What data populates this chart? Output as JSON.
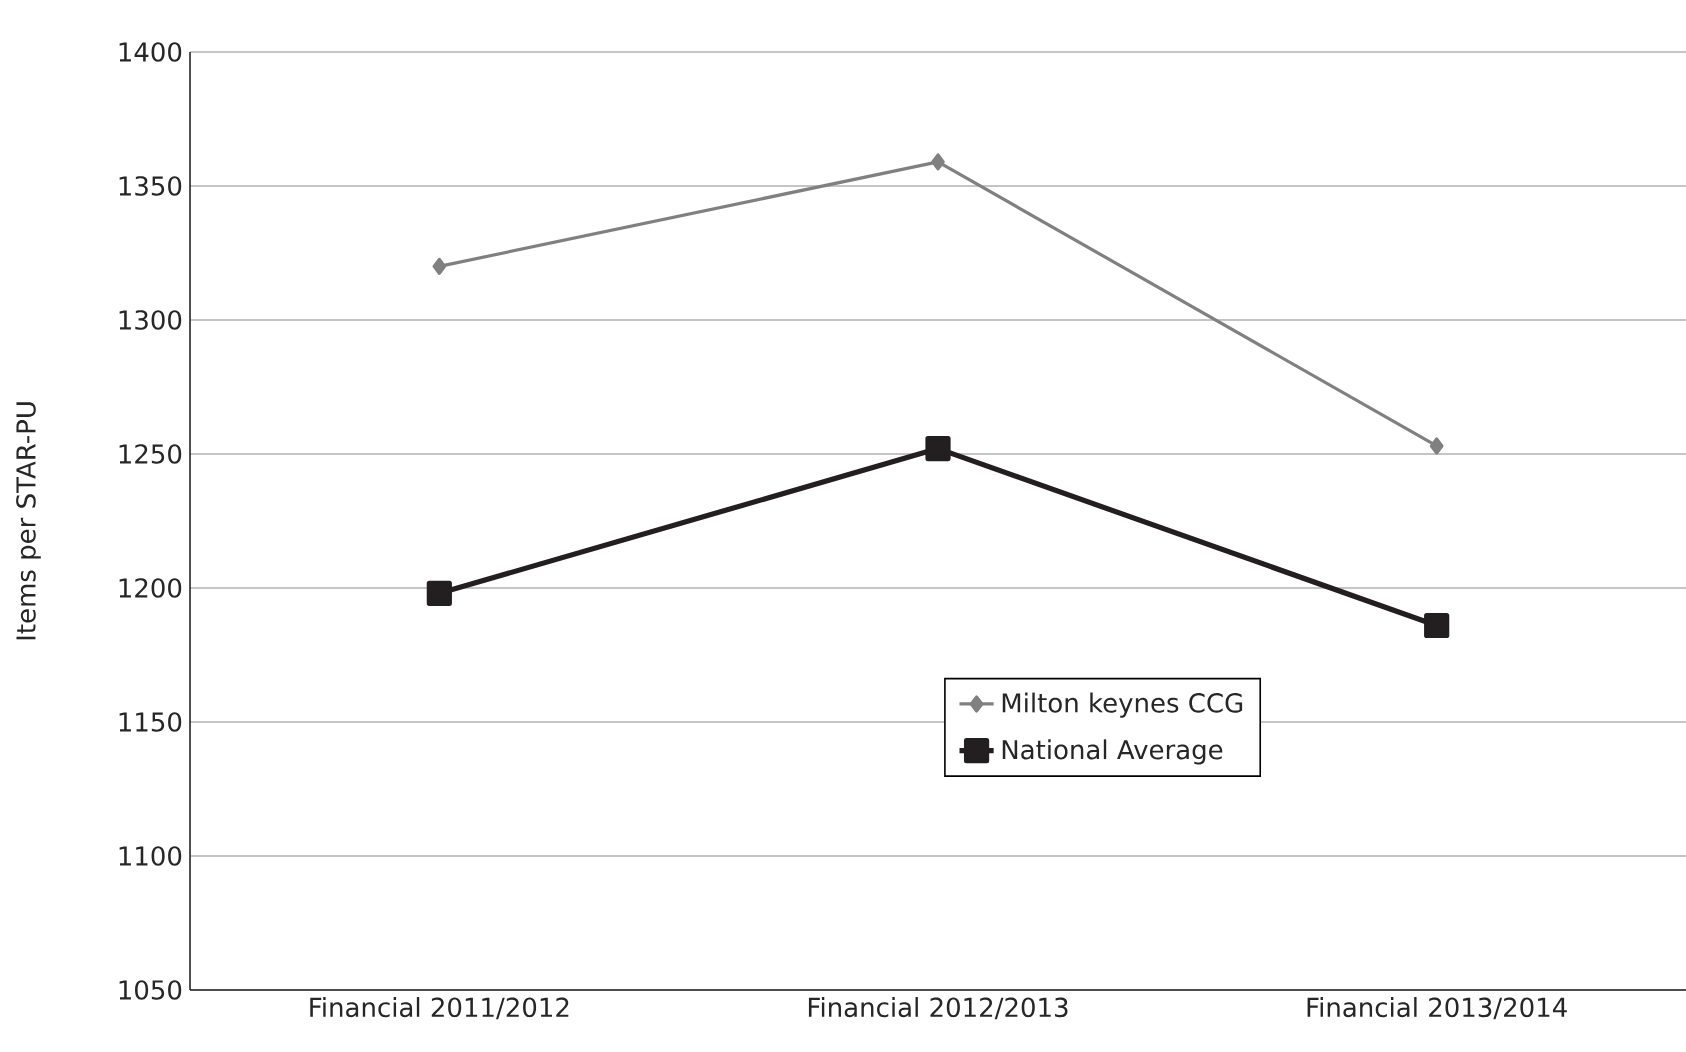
{
  "chart_data": {
    "type": "line",
    "ylabel": "Items per STAR-PU",
    "categories": [
      "Financial 2011/2012",
      "Financial 2012/2013",
      "Financial 2013/2014"
    ],
    "series": [
      {
        "name": "Milton keynes CCG",
        "color": "#808080",
        "values": [
          1320,
          1359,
          1253
        ],
        "marker": "diamond"
      },
      {
        "name": "National Average",
        "color": "#231f20",
        "values": [
          1198,
          1252,
          1186
        ],
        "marker": "square"
      }
    ],
    "ylim": [
      1050,
      1400
    ],
    "yticks": [
      1050,
      1100,
      1150,
      1200,
      1250,
      1300,
      1350,
      1400
    ],
    "grid": "y",
    "legend": "center"
  }
}
